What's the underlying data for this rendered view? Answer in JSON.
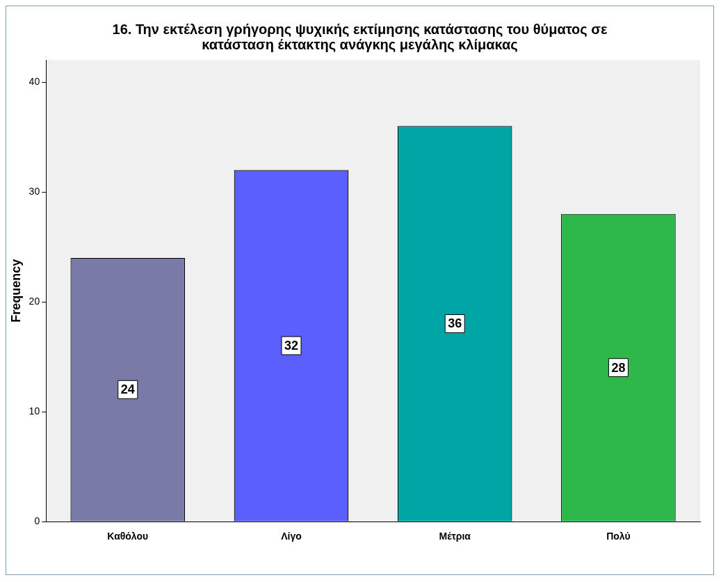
{
  "chart_data": {
    "type": "bar",
    "title": "16. Την εκτέλεση γρήγορης ψυχικής εκτίμησης κατάστασης του θύματος σε κατάσταση έκτακτης ανάγκης μεγάλης κλίμακας",
    "ylabel": "Frequency",
    "categories": [
      "Καθόλου",
      "Λίγο",
      "Μέτρια",
      "Πολύ"
    ],
    "values": [
      24,
      32,
      36,
      28
    ],
    "colors": [
      "#7a7aa8",
      "#5b5ffd",
      "#00a5a5",
      "#2eb84b"
    ],
    "ylim": [
      0,
      42
    ],
    "yticks": [
      0,
      10,
      20,
      30,
      40
    ],
    "grid": false,
    "legend": false,
    "data_labels": true
  }
}
